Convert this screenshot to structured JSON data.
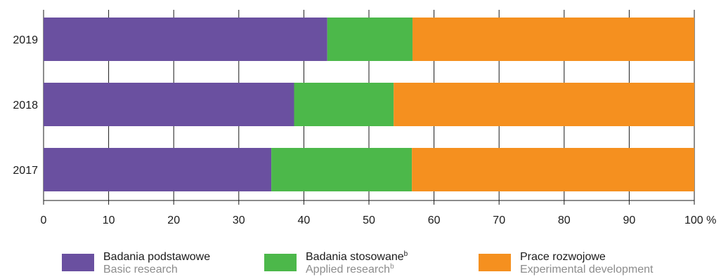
{
  "chart_data": {
    "type": "bar",
    "orientation": "horizontal",
    "stacked": true,
    "categories": [
      "2019",
      "2018",
      "2017"
    ],
    "series": [
      {
        "name": "Badania podstawowe",
        "name_en": "Basic research",
        "color": "#6a50a0",
        "values": [
          43.6,
          38.5,
          35.0
        ]
      },
      {
        "name": "Badania stosowane",
        "name_en": "Applied research",
        "footnote": "b",
        "color": "#4cb84a",
        "values": [
          13.1,
          15.3,
          21.6
        ]
      },
      {
        "name": "Prace rozwojowe",
        "name_en": "Experimental development",
        "color": "#f5901f",
        "values": [
          43.3,
          46.2,
          43.4
        ]
      }
    ],
    "xlim": [
      0,
      100
    ],
    "xticks": [
      "0",
      "10",
      "20",
      "30",
      "40",
      "50",
      "60",
      "70",
      "80",
      "90",
      "100 %"
    ],
    "grid": true,
    "legend_position": "bottom"
  }
}
